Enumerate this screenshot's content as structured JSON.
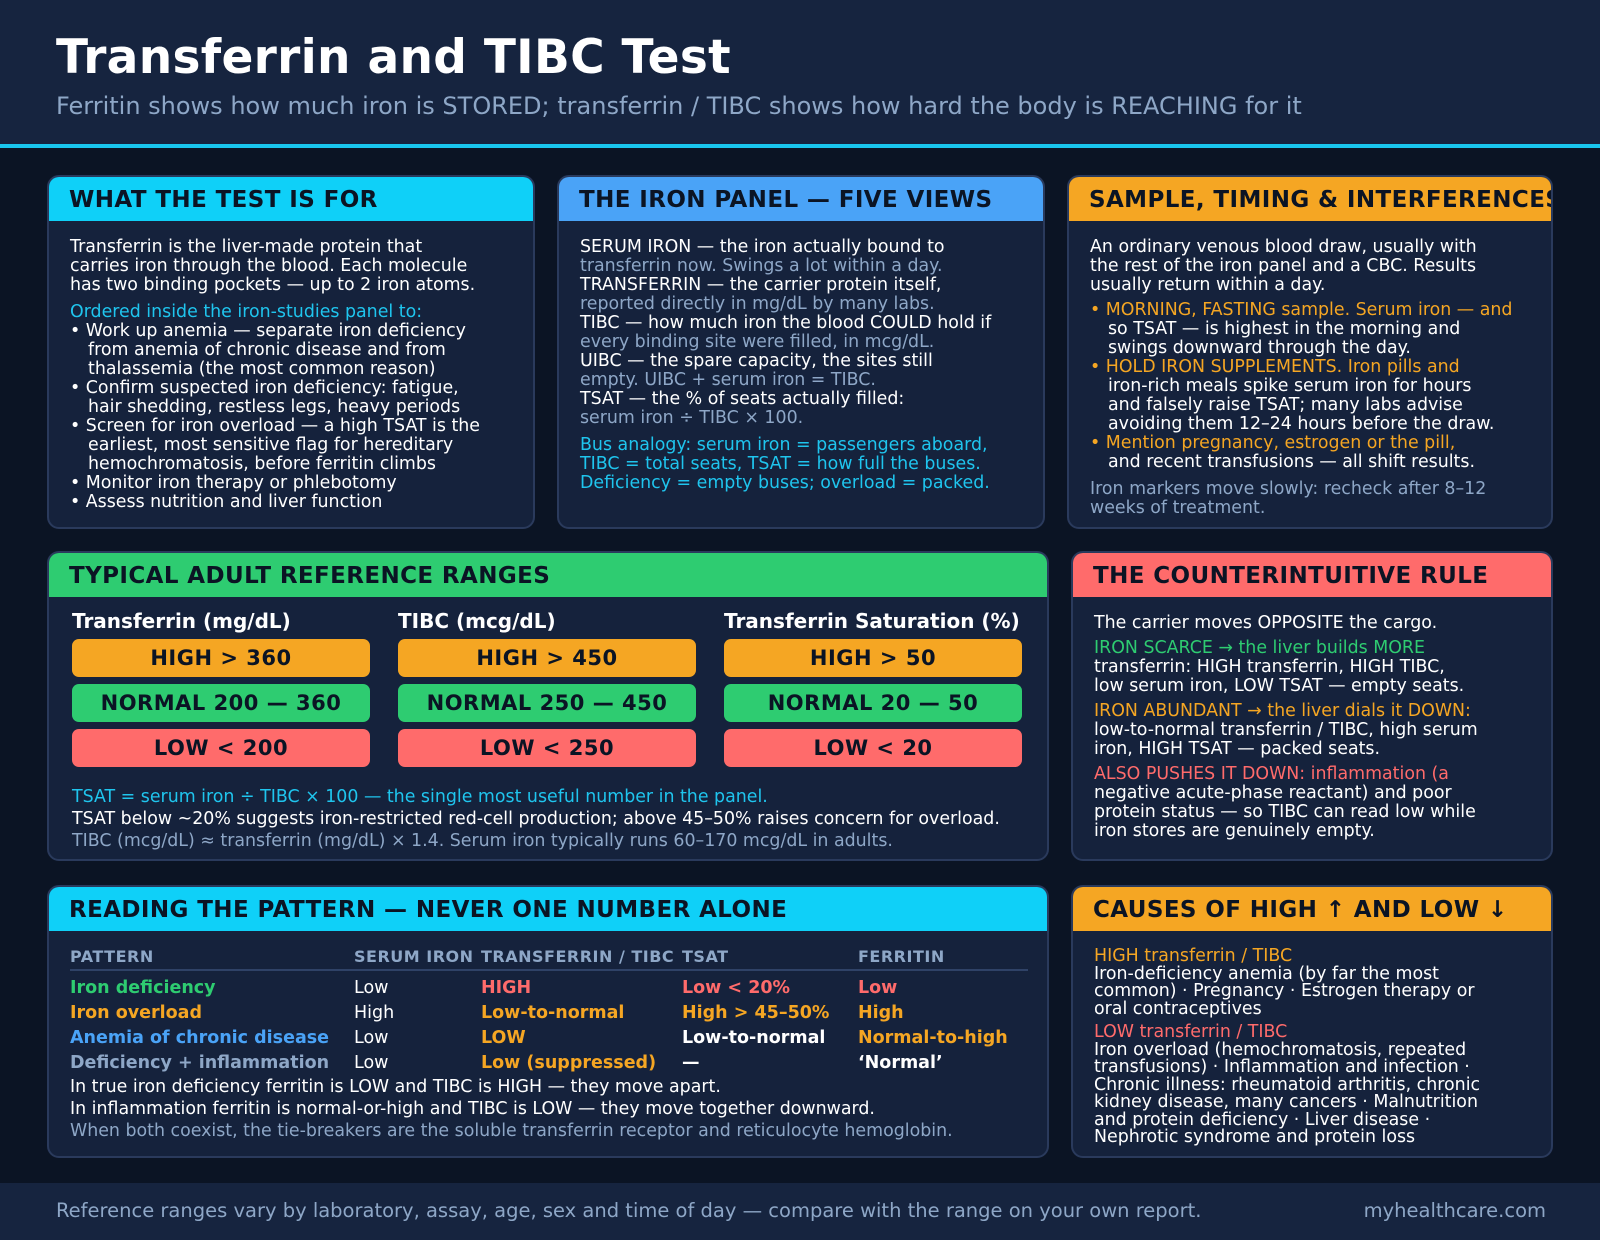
{
  "header": {
    "title": "Transferrin and TIBC Test",
    "subtitle": "Ferritin shows how much iron is STORED; transferrin / TIBC shows how hard the body is REACHING for it"
  },
  "purpose": {
    "heading": "WHAT THE TEST IS FOR",
    "intro": [
      "Transferrin is the liver-made protein that",
      "carries iron through the blood. Each molecule",
      "has two binding pockets — up to 2 iron atoms."
    ],
    "ordered_label": "Ordered inside the iron-studies panel to:",
    "bullets": [
      [
        "• Work up anemia — separate iron deficiency",
        "from anemia of chronic disease and from",
        "thalassemia (the most common reason)"
      ],
      [
        "• Confirm suspected iron deficiency: fatigue,",
        "hair shedding, restless legs, heavy periods"
      ],
      [
        "• Screen for iron overload — a high TSAT is the",
        "earliest, most sensitive flag for hereditary",
        "hemochromatosis, before ferritin climbs"
      ],
      [
        "• Monitor iron therapy or phlebotomy"
      ],
      [
        "• Assess nutrition and liver function"
      ]
    ]
  },
  "panel_views": {
    "heading": "THE IRON PANEL — FIVE VIEWS",
    "items": [
      {
        "main": "SERUM IRON — the iron actually bound to",
        "note": "transferrin now. Swings a lot within a day."
      },
      {
        "main": "TRANSFERRIN — the carrier protein itself,",
        "note": "reported directly in mg/dL by many labs."
      },
      {
        "main": "TIBC — how much iron the blood COULD hold if",
        "note": "every binding site were filled, in mcg/dL."
      },
      {
        "main": "UIBC — the spare capacity, the sites still",
        "note": "empty. UIBC + serum iron = TIBC."
      },
      {
        "main": "TSAT — the % of seats actually filled:",
        "note": "serum iron ÷ TIBC × 100."
      }
    ],
    "analogy": [
      "Bus analogy: serum iron = passengers aboard,",
      "TIBC = total seats, TSAT = how full the buses.",
      "Deficiency = empty buses; overload = packed."
    ]
  },
  "sample": {
    "heading": "SAMPLE, TIMING & INTERFERENCES",
    "intro": [
      "An ordinary venous blood draw, usually with",
      "the rest of the iron panel and a CBC. Results",
      "usually return within a day."
    ],
    "bullets": [
      {
        "lead": "• MORNING, FASTING sample. Serum iron — and",
        "rest": [
          "so TSAT — is highest in the morning and",
          "swings downward through the day."
        ]
      },
      {
        "lead": "• HOLD IRON SUPPLEMENTS. Iron pills and",
        "rest": [
          "iron-rich meals spike serum iron for hours",
          "and falsely raise TSAT; many labs advise",
          "avoiding them 12–24 hours before the draw."
        ]
      },
      {
        "lead": "• Mention pregnancy, estrogen or the pill,",
        "rest": [
          "and recent transfusions — all shift results."
        ]
      }
    ],
    "note": [
      "Iron markers move slowly: recheck after 8–12",
      "weeks of treatment."
    ]
  },
  "ranges": {
    "heading": "TYPICAL ADULT REFERENCE RANGES",
    "columns": [
      {
        "title": "Transferrin (mg/dL)",
        "high": "HIGH > 360",
        "normal": "NORMAL 200 — 360",
        "low": "LOW < 200"
      },
      {
        "title": "TIBC (mcg/dL)",
        "high": "HIGH > 450",
        "normal": "NORMAL 250 — 450",
        "low": "LOW < 250"
      },
      {
        "title": "Transferrin Saturation (%)",
        "high": "HIGH > 50",
        "normal": "NORMAL 20 — 50",
        "low": "LOW < 20"
      }
    ],
    "formula": "TSAT = serum iron ÷ TIBC × 100 — the single most useful number in the panel.",
    "interpretation": "TSAT below ~20% suggests iron-restricted red-cell production; above 45–50% raises concern for overload.",
    "conversion": "TIBC (mcg/dL) ≈ transferrin (mg/dL) × 1.4. Serum iron typically runs 60–170 mcg/dL in adults.",
    "colors": {
      "high": "#f5a623",
      "normal": "#2ecc71",
      "low": "#ff6b6b"
    }
  },
  "rule": {
    "heading": "THE COUNTERINTUITIVE RULE",
    "intro": "The carrier moves OPPOSITE the cargo.",
    "scarce": {
      "lead": "IRON SCARCE → the liver builds MORE",
      "rest": [
        "transferrin: HIGH transferrin, HIGH TIBC,",
        "low serum iron, LOW TSAT — empty seats."
      ]
    },
    "abundant": {
      "lead": "IRON ABUNDANT → the liver dials it DOWN:",
      "rest": [
        "low-to-normal transferrin / TIBC, high serum",
        "iron, HIGH TSAT — packed seats."
      ]
    },
    "also": {
      "lead": "ALSO PUSHES IT DOWN: inflammation (a",
      "rest": [
        "negative acute-phase reactant) and poor",
        "protein status — so TIBC can read low while",
        "iron stores are genuinely empty."
      ]
    }
  },
  "pattern": {
    "heading": "READING THE PATTERN — NEVER ONE NUMBER ALONE",
    "columns": [
      "PATTERN",
      "SERUM IRON",
      "TRANSFERRIN / TIBC",
      "TSAT",
      "FERRITIN"
    ],
    "rows": [
      [
        "Iron deficiency",
        "Low",
        "HIGH",
        "Low < 20%",
        "Low"
      ],
      [
        "Iron overload",
        "High",
        "Low-to-normal",
        "High > 45–50%",
        "High"
      ],
      [
        "Anemia of chronic disease",
        "Low",
        "LOW",
        "Low-to-normal",
        "Normal-to-high"
      ],
      [
        "Deficiency + inflammation",
        "Low",
        "Low (suppressed)",
        "—",
        "‘Normal’"
      ]
    ],
    "notes": [
      "In true iron deficiency ferritin is LOW and TIBC is HIGH — they move apart.",
      "In inflammation ferritin is normal-or-high and TIBC is LOW — they move together downward.",
      "When both coexist, the tie-breakers are the soluble transferrin receptor and reticulocyte hemoglobin."
    ]
  },
  "causes": {
    "heading": "CAUSES OF HIGH ↑ AND LOW ↓",
    "high_label": "HIGH transferrin / TIBC",
    "high_lines": [
      "Iron-deficiency anemia (by far the most",
      "common) · Pregnancy · Estrogen therapy or",
      "oral contraceptives"
    ],
    "low_label": "LOW transferrin / TIBC",
    "low_lines": [
      "Iron overload (hemochromatosis, repeated",
      "transfusions) · Inflammation and infection ·",
      "Chronic illness: rheumatoid arthritis, chronic",
      "kidney disease, many cancers · Malnutrition",
      "and protein deficiency · Liver disease ·",
      "Nephrotic syndrome and protein loss"
    ]
  },
  "footer": {
    "disclaimer": "Reference ranges vary by laboratory, assay, age, sex and time of day — compare with the range on your own report.",
    "site": "myhealthcare.com"
  }
}
